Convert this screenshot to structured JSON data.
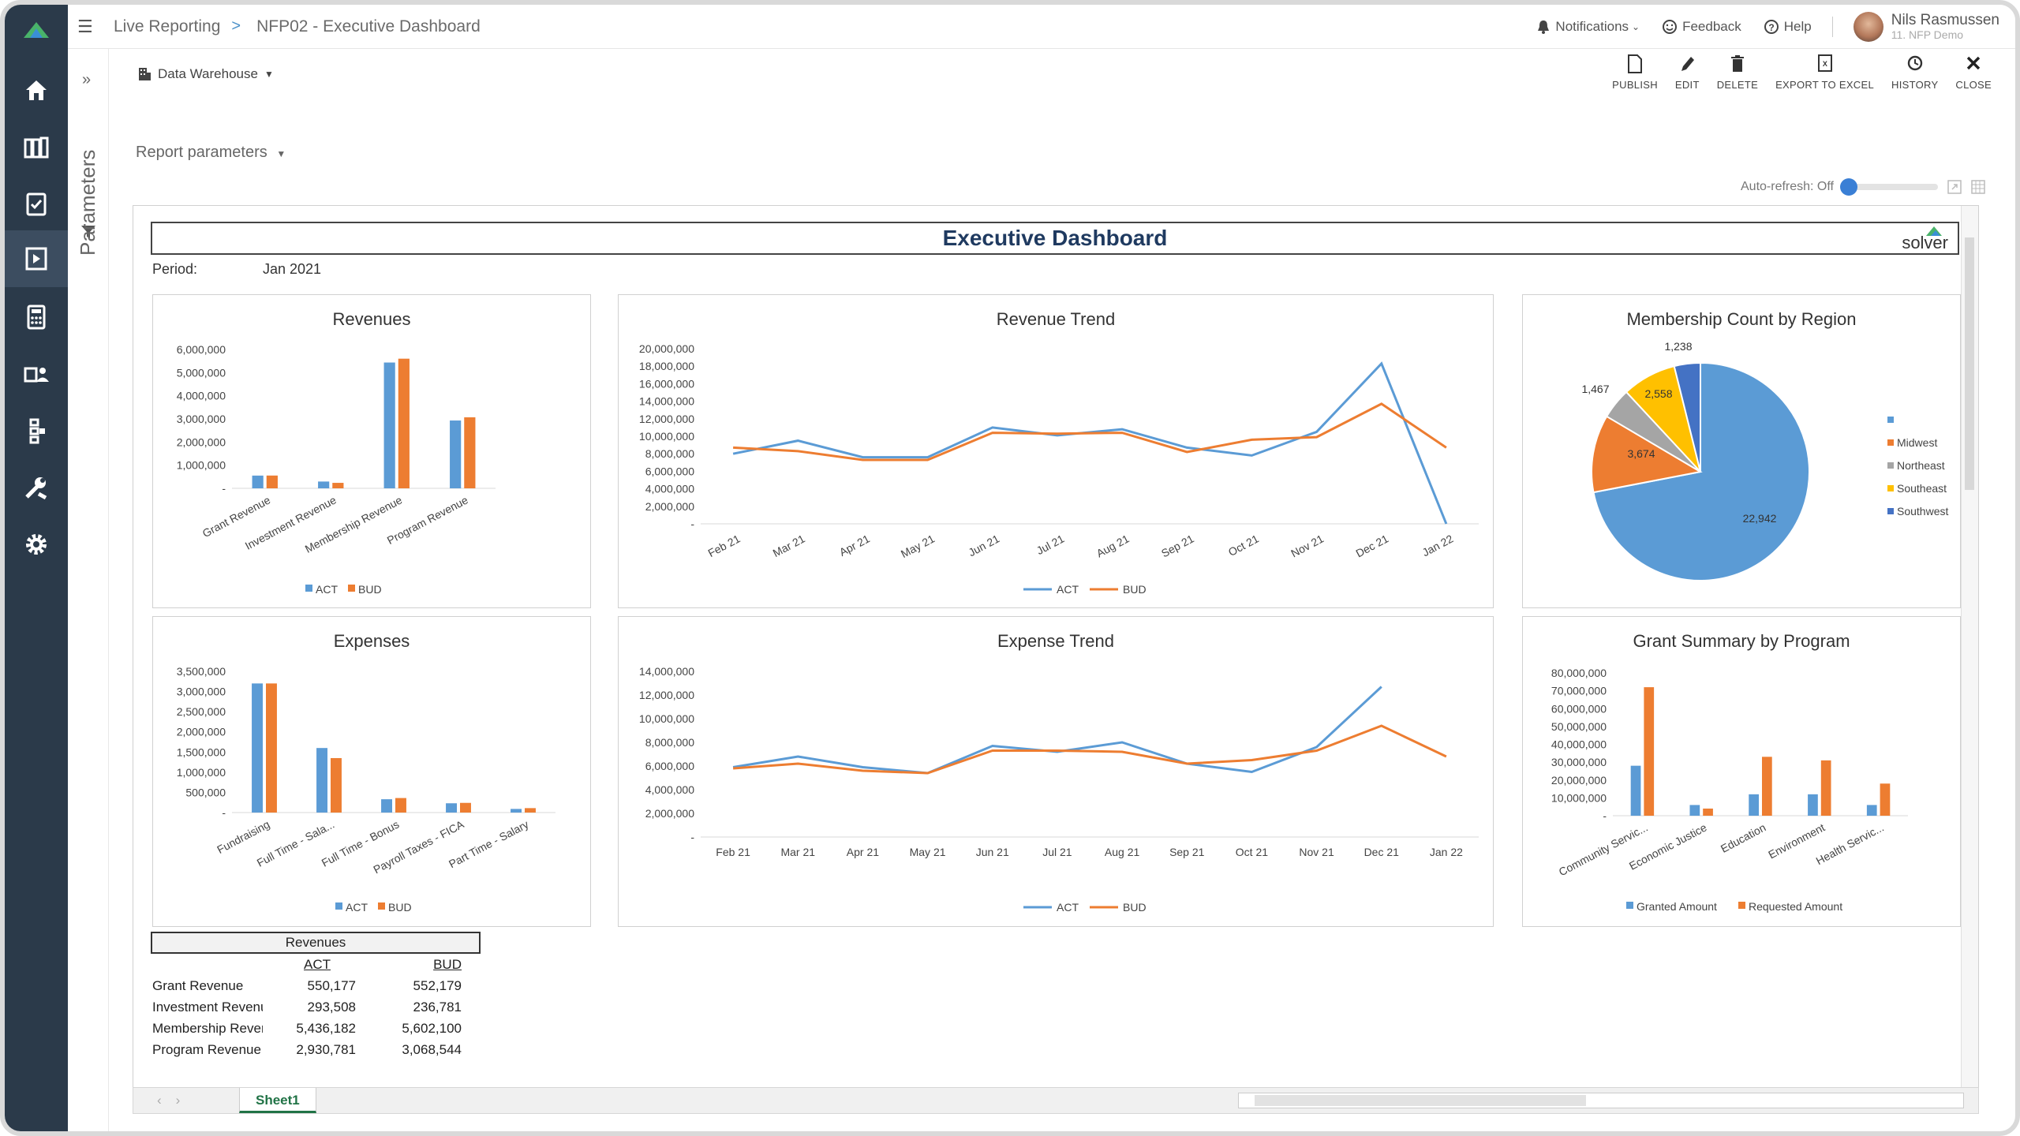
{
  "breadcrumb": {
    "app": "Live Reporting",
    "separator": ">",
    "page": "NFP02 - Executive Dashboard"
  },
  "topbar": {
    "notifications": "Notifications",
    "feedback": "Feedback",
    "help": "Help",
    "user_name": "Nils Rasmussen",
    "user_sub": "11. NFP Demo"
  },
  "side": {
    "params_label": "Parameters"
  },
  "toolbar": {
    "source": "Data Warehouse",
    "buttons": [
      "PUBLISH",
      "EDIT",
      "DELETE",
      "EXPORT TO EXCEL",
      "HISTORY",
      "CLOSE"
    ]
  },
  "report_params": "Report parameters",
  "auto_refresh": "Auto-refresh: Off",
  "dashboard": {
    "title": "Executive Dashboard",
    "brand": "solver",
    "period_label": "Period:",
    "period_value": "Jan 2021"
  },
  "sheet_tab": "Sheet1",
  "colors": {
    "act": "#5b9bd5",
    "bud": "#ed7d31",
    "gray": "#a5a5a5",
    "yellow": "#ffc000",
    "dark_blue": "#4472c4",
    "nav": "#2b3a4a"
  },
  "revenues_table": {
    "header": "Revenues",
    "col_act": "ACT",
    "col_bud": "BUD",
    "rows": [
      {
        "name": "Grant Revenue",
        "act": "550,177",
        "bud": "552,179"
      },
      {
        "name": "Investment Revenue",
        "act": "293,508",
        "bud": "236,781"
      },
      {
        "name": "Membership Revenue",
        "act": "5,436,182",
        "bud": "5,602,100"
      },
      {
        "name": "Program Revenue",
        "act": "2,930,781",
        "bud": "3,068,544"
      }
    ]
  },
  "chart_data": [
    {
      "type": "bar",
      "title": "Revenues",
      "categories": [
        "Grant Revenue",
        "Investment Revenue",
        "Membership Revenue",
        "Program Revenue"
      ],
      "series": [
        {
          "name": "ACT",
          "values": [
            550177,
            293508,
            5436182,
            2930781
          ]
        },
        {
          "name": "BUD",
          "values": [
            552179,
            236781,
            5602100,
            3068544
          ]
        }
      ],
      "ylim": [
        0,
        6000000
      ],
      "yticks": [
        "-",
        "1,000,000",
        "2,000,000",
        "3,000,000",
        "4,000,000",
        "5,000,000",
        "6,000,000"
      ]
    },
    {
      "type": "line",
      "title": "Revenue Trend",
      "categories": [
        "Feb 21",
        "Mar 21",
        "Apr 21",
        "May 21",
        "Jun 21",
        "Jul 21",
        "Aug 21",
        "Sep 21",
        "Oct 21",
        "Nov 21",
        "Dec 21",
        "Jan 22"
      ],
      "series": [
        {
          "name": "ACT",
          "values": [
            8000000,
            9500000,
            7600000,
            7600000,
            11000000,
            10100000,
            10800000,
            8700000,
            7800000,
            10500000,
            18300000,
            0
          ]
        },
        {
          "name": "BUD",
          "values": [
            8700000,
            8300000,
            7300000,
            7300000,
            10400000,
            10300000,
            10400000,
            8200000,
            9600000,
            9900000,
            13700000,
            8700000
          ]
        }
      ],
      "ylim": [
        0,
        20000000
      ],
      "yticks": [
        "-",
        "2,000,000",
        "4,000,000",
        "6,000,000",
        "8,000,000",
        "10,000,000",
        "12,000,000",
        "14,000,000",
        "16,000,000",
        "18,000,000",
        "20,000,000"
      ]
    },
    {
      "type": "pie",
      "title": "Membership Count by Region",
      "labels": [
        "",
        "Midwest",
        "Northeast",
        "Southeast",
        "Southwest"
      ],
      "values": [
        22942,
        3674,
        1467,
        2558,
        1238
      ],
      "data_labels": [
        "22,942",
        "3,674",
        "1,467",
        "2,558",
        "1,238"
      ]
    },
    {
      "type": "bar",
      "title": "Expenses",
      "categories": [
        "Fundraising",
        "Full Time - Sala...",
        "Full Time - Bonus",
        "Payroll Taxes - FICA",
        "Part Time - Salary"
      ],
      "series": [
        {
          "name": "ACT",
          "values": [
            3200000,
            1600000,
            330000,
            230000,
            90000
          ]
        },
        {
          "name": "BUD",
          "values": [
            3200000,
            1350000,
            360000,
            240000,
            110000
          ]
        }
      ],
      "ylim": [
        0,
        3500000
      ],
      "yticks": [
        "-",
        "500,000",
        "1,000,000",
        "1,500,000",
        "2,000,000",
        "2,500,000",
        "3,000,000",
        "3,500,000"
      ]
    },
    {
      "type": "line",
      "title": "Expense Trend",
      "categories": [
        "Feb 21",
        "Mar 21",
        "Apr 21",
        "May 21",
        "Jun 21",
        "Jul 21",
        "Aug 21",
        "Sep 21",
        "Oct 21",
        "Nov 21",
        "Dec 21",
        "Jan 22"
      ],
      "series": [
        {
          "name": "ACT",
          "values": [
            5900000,
            6800000,
            5900000,
            5400000,
            7700000,
            7200000,
            8000000,
            6200000,
            5500000,
            7600000,
            12700000,
            null
          ]
        },
        {
          "name": "BUD",
          "values": [
            5800000,
            6200000,
            5600000,
            5400000,
            7300000,
            7300000,
            7200000,
            6200000,
            6500000,
            7300000,
            9400000,
            6800000
          ]
        }
      ],
      "ylim": [
        0,
        14000000
      ],
      "yticks": [
        "-",
        "2,000,000",
        "4,000,000",
        "6,000,000",
        "8,000,000",
        "10,000,000",
        "12,000,000",
        "14,000,000"
      ]
    },
    {
      "type": "bar",
      "title": "Grant Summary by Program",
      "categories": [
        "Community Servic...",
        "Economic Justice",
        "Education",
        "Environment",
        "Health Servic..."
      ],
      "series": [
        {
          "name": "Granted Amount",
          "values": [
            28000000,
            6000000,
            12000000,
            12000000,
            6000000
          ]
        },
        {
          "name": "Requested Amount",
          "values": [
            72000000,
            4000000,
            33000000,
            31000000,
            18000000
          ]
        }
      ],
      "ylim": [
        0,
        80000000
      ],
      "yticks": [
        "-",
        "10,000,000",
        "20,000,000",
        "30,000,000",
        "40,000,000",
        "50,000,000",
        "60,000,000",
        "70,000,000",
        "80,000,000"
      ]
    }
  ]
}
